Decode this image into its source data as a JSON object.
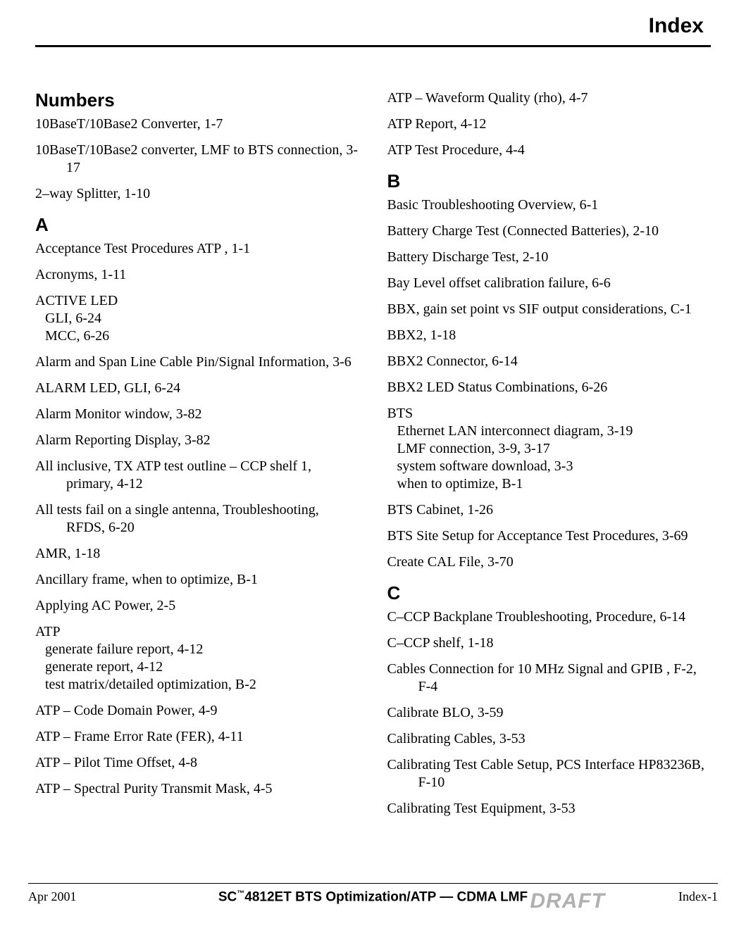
{
  "header": {
    "title": "Index"
  },
  "footer": {
    "left": "Apr 2001",
    "center_prefix": "SC",
    "center_tm": "™",
    "center_suffix": "4812ET BTS Optimization/ATP — CDMA LMF",
    "right": "Index-1",
    "watermark": "DRAFT"
  },
  "left_column": [
    {
      "type": "heading",
      "text": "Numbers",
      "first": true
    },
    {
      "type": "entry",
      "text": "10BaseT/10Base2 Converter, 1-7"
    },
    {
      "type": "entry",
      "text": "10BaseT/10Base2 converter, LMF to BTS connection, 3-17"
    },
    {
      "type": "entry",
      "text": "2–way Splitter, 1-10"
    },
    {
      "type": "heading",
      "text": "A"
    },
    {
      "type": "entry",
      "text": "Acceptance Test Procedures ATP , 1-1"
    },
    {
      "type": "entry",
      "text": "Acronyms, 1-11"
    },
    {
      "type": "group",
      "head": "ACTIVE LED",
      "subs": [
        "GLI, 6-24",
        "MCC, 6-26"
      ]
    },
    {
      "type": "entry",
      "text": "Alarm and Span Line Cable Pin/Signal Information, 3-6"
    },
    {
      "type": "entry",
      "text": "ALARM LED, GLI, 6-24"
    },
    {
      "type": "entry",
      "text": "Alarm Monitor window, 3-82"
    },
    {
      "type": "entry",
      "text": "Alarm Reporting Display, 3-82"
    },
    {
      "type": "entry",
      "text": "All inclusive, TX ATP test outline – CCP shelf 1, primary, 4-12"
    },
    {
      "type": "entry",
      "text": "All tests fail on a single antenna, Troubleshooting, RFDS, 6-20"
    },
    {
      "type": "entry",
      "text": "AMR, 1-18"
    },
    {
      "type": "entry",
      "text": "Ancillary frame, when to optimize, B-1"
    },
    {
      "type": "entry",
      "text": "Applying AC Power, 2-5"
    },
    {
      "type": "group",
      "head": "ATP",
      "subs": [
        "generate failure report, 4-12",
        "generate report, 4-12",
        "test matrix/detailed optimization, B-2"
      ]
    },
    {
      "type": "entry",
      "text": "ATP – Code Domain Power, 4-9"
    },
    {
      "type": "entry",
      "text": "ATP – Frame Error Rate (FER), 4-11"
    },
    {
      "type": "entry",
      "text": "ATP – Pilot Time Offset, 4-8"
    },
    {
      "type": "entry",
      "text": "ATP – Spectral Purity Transmit Mask, 4-5"
    }
  ],
  "right_column": [
    {
      "type": "entry",
      "text": "ATP – Waveform Quality (rho), 4-7"
    },
    {
      "type": "entry",
      "text": "ATP Report, 4-12"
    },
    {
      "type": "entry",
      "text": "ATP Test Procedure, 4-4"
    },
    {
      "type": "heading",
      "text": "B"
    },
    {
      "type": "entry",
      "text": "Basic Troubleshooting Overview, 6-1"
    },
    {
      "type": "entry",
      "text": "Battery Charge Test (Connected Batteries), 2-10"
    },
    {
      "type": "entry",
      "text": "Battery Discharge Test, 2-10"
    },
    {
      "type": "entry",
      "text": "Bay Level offset calibration failure, 6-6"
    },
    {
      "type": "entry",
      "text": "BBX, gain set point vs SIF output considerations, C-1"
    },
    {
      "type": "entry",
      "text": "BBX2, 1-18"
    },
    {
      "type": "entry",
      "text": "BBX2 Connector, 6-14"
    },
    {
      "type": "entry",
      "text": "BBX2 LED Status Combinations, 6-26"
    },
    {
      "type": "group",
      "head": "BTS",
      "subs": [
        "Ethernet LAN interconnect diagram, 3-19",
        "LMF connection, 3-9, 3-17",
        "system software download, 3-3",
        "when to optimize, B-1"
      ]
    },
    {
      "type": "entry",
      "text": "BTS Cabinet, 1-26"
    },
    {
      "type": "entry",
      "text": "BTS Site Setup for Acceptance Test Procedures, 3-69"
    },
    {
      "type": "entry",
      "text": "Create CAL File, 3-70"
    },
    {
      "type": "heading",
      "text": "C"
    },
    {
      "type": "entry",
      "text": "C–CCP Backplane Troubleshooting, Procedure, 6-14"
    },
    {
      "type": "entry",
      "text": "C–CCP shelf, 1-18"
    },
    {
      "type": "entry",
      "text": "Cables Connection for 10 MHz Signal and GPIB , F-2, F-4"
    },
    {
      "type": "entry",
      "text": "Calibrate BLO, 3-59"
    },
    {
      "type": "entry",
      "text": "Calibrating Cables, 3-53"
    },
    {
      "type": "entry",
      "text": "Calibrating Test Cable Setup, PCS Interface HP83236B, F-10"
    },
    {
      "type": "entry",
      "text": "Calibrating Test Equipment, 3-53"
    }
  ]
}
